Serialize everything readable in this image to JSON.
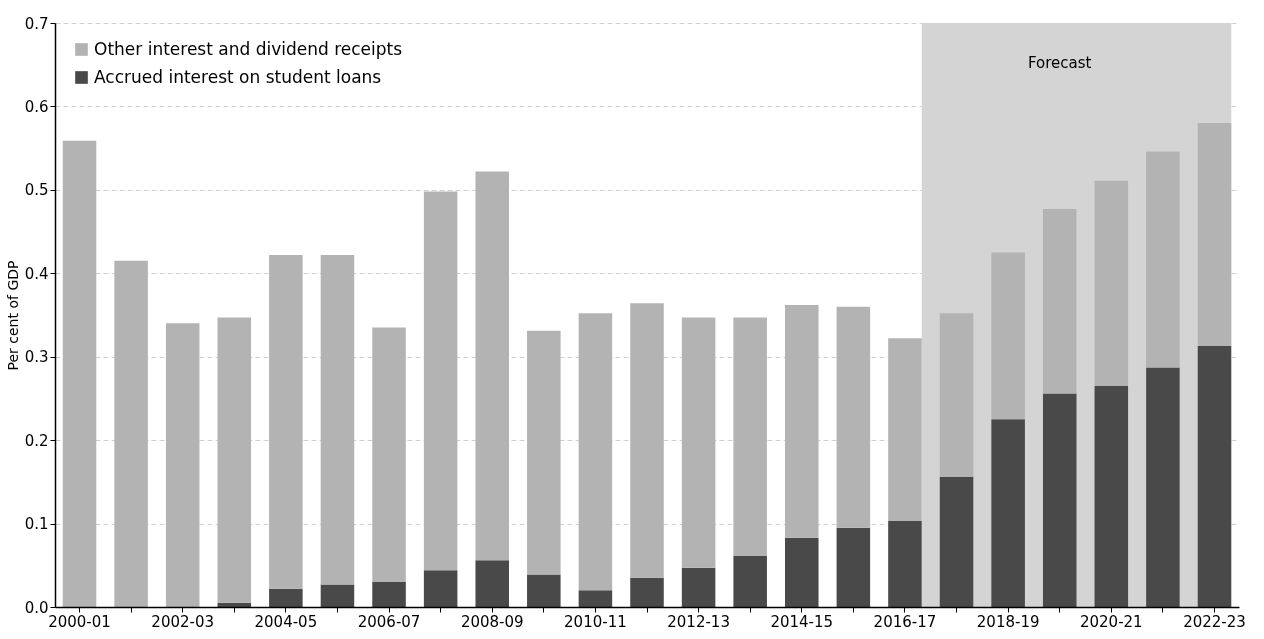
{
  "chart_data": {
    "type": "bar",
    "stacked": true,
    "ylabel": "Per cent of GDP",
    "categories": [
      "2000-01",
      null,
      "2002-03",
      null,
      "2004-05",
      null,
      "2006-07",
      null,
      "2008-09",
      null,
      "2010-11",
      null,
      "2012-13",
      null,
      "2014-15",
      null,
      "2016-17",
      null,
      "2018-19",
      null,
      "2020-21",
      null,
      "2022-23"
    ],
    "series": [
      {
        "name": "Accrued interest on student loans",
        "color": "#494949",
        "values": [
          0,
          0,
          0,
          0.005,
          0.022,
          0.027,
          0.03,
          0.044,
          0.056,
          0.039,
          0.02,
          0.035,
          0.047,
          0.061,
          0.083,
          0.095,
          0.103,
          0.156,
          0.225,
          0.256,
          0.265,
          0.287,
          0.313
        ]
      },
      {
        "name": "Other interest and dividend receipts",
        "color": "#b3b3b3",
        "values": [
          0.559,
          0.415,
          0.34,
          0.342,
          0.4,
          0.395,
          0.305,
          0.454,
          0.466,
          0.292,
          0.332,
          0.329,
          0.3,
          0.286,
          0.279,
          0.265,
          0.219,
          0.196,
          0.2,
          0.221,
          0.246,
          0.259,
          0.267
        ]
      }
    ],
    "ylim": [
      0,
      0.7
    ],
    "yticks": [
      {
        "value": 0,
        "label": "0.0"
      },
      0.1,
      0.2,
      0.3,
      0.4,
      0.5,
      0.6,
      0.7
    ],
    "grid": "y",
    "legend": "top left",
    "bands": [
      {
        "axis": "x",
        "from": "2016-17",
        "to": "2022-23",
        "label": "Forecast",
        "color": "#d4d4d4"
      }
    ]
  }
}
